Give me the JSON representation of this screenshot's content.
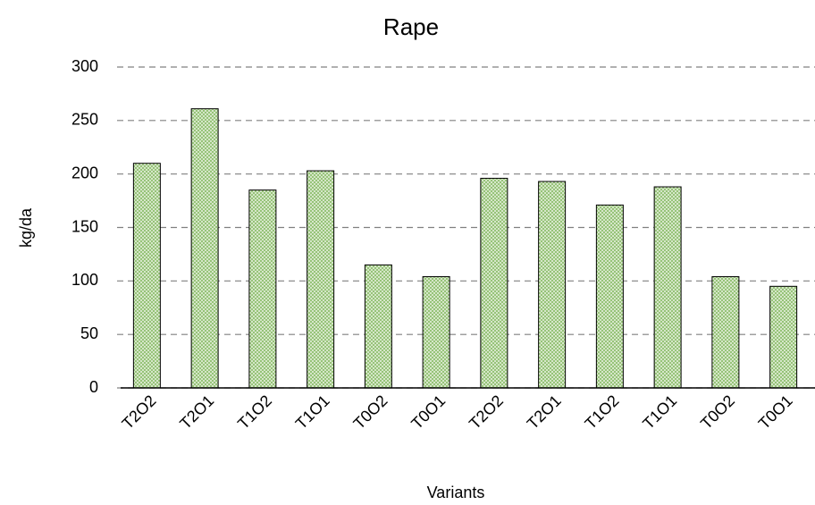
{
  "chart_data": {
    "type": "bar",
    "title": "Rape",
    "x_label": "Variants",
    "y_label": "kg/da",
    "categories": [
      "T2O2",
      "T2O1",
      "T1O2",
      "T1O1",
      "T0O2",
      "T0O1",
      "T2O2",
      "T2O1",
      "T1O2",
      "T1O1",
      "T0O2",
      "T0O1"
    ],
    "values": [
      210,
      261,
      185,
      203,
      115,
      104,
      196,
      193,
      171,
      188,
      104,
      95
    ],
    "color": "#8fbf6f",
    "ylim": [
      0,
      300
    ],
    "yticks": [
      0,
      50,
      100,
      150,
      200,
      250,
      300
    ],
    "grid": true
  }
}
